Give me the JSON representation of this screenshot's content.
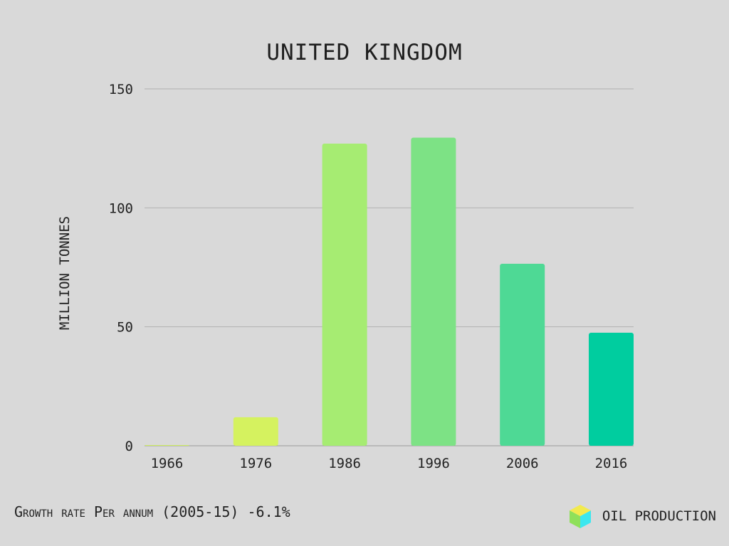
{
  "header": {
    "title": "UNITED KINGDOM"
  },
  "footer": {
    "growth_text": "Growth rate Per annum (2005-15) -6.1%",
    "brand_label": "OIL PRODUCTION",
    "brand_icon": "cube-icon"
  },
  "chart_data": {
    "type": "bar",
    "title": "UNITED KINGDOM",
    "xlabel": "",
    "ylabel": "MILLION TONNES",
    "categories": [
      "1966",
      "1976",
      "1986",
      "1996",
      "2006",
      "2016"
    ],
    "values": [
      0.1,
      12,
      127,
      129.5,
      76.5,
      47.5
    ],
    "bar_colors": [
      "#cdee5c",
      "#d5f25f",
      "#a6ec72",
      "#7de285",
      "#4ed995",
      "#00cd9f"
    ],
    "ylim": [
      0,
      150
    ],
    "yticks": [
      0,
      50,
      100,
      150
    ],
    "grid": true,
    "legend": "none"
  }
}
